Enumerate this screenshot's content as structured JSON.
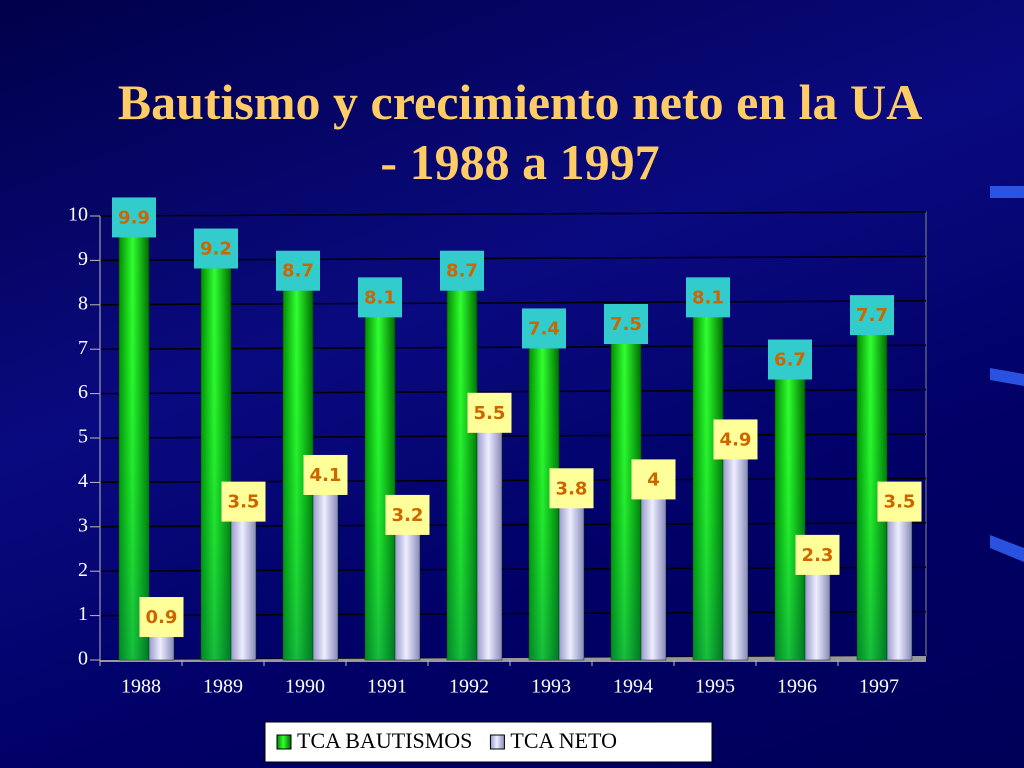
{
  "chart_data": {
    "type": "bar",
    "title": "Bautismo y crecimiento neto en la UA - 1988 a 1997",
    "categories": [
      "1988",
      "1989",
      "1990",
      "1991",
      "1992",
      "1993",
      "1994",
      "1995",
      "1996",
      "1997"
    ],
    "series": [
      {
        "name": "TCA BAUTISMOS",
        "color": "#00e000",
        "values": [
          9.9,
          9.2,
          8.7,
          8.1,
          8.7,
          7.4,
          7.5,
          8.1,
          6.7,
          7.7
        ]
      },
      {
        "name": "TCA NETO",
        "color": "#ccccff",
        "values": [
          0.9,
          3.5,
          4.1,
          3.2,
          5.5,
          3.8,
          4,
          4.9,
          2.3,
          3.5
        ]
      }
    ],
    "ylim": [
      0,
      10
    ],
    "yticks": [
      0,
      1,
      2,
      3,
      4,
      5,
      6,
      7,
      8,
      9,
      10
    ],
    "grid": true,
    "legend": "bottom"
  }
}
